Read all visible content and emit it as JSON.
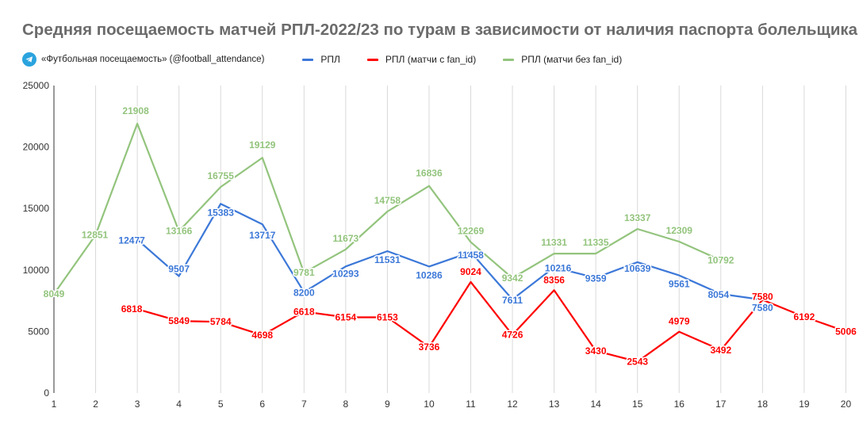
{
  "title": "Средняя посещаемость матчей РПЛ-2022/23 по турам в зависимости от наличия паспорта болельщика",
  "source_label": "«Футбольная посещаемость» (@football_attendance)",
  "icons": {
    "source": "telegram-icon"
  },
  "chart_data": {
    "type": "line",
    "title": "Средняя посещаемость матчей РПЛ-2022/23 по турам в зависимости от наличия паспорта болельщика",
    "xlabel": "",
    "ylabel": "",
    "x": [
      1,
      2,
      3,
      4,
      5,
      6,
      7,
      8,
      9,
      10,
      11,
      12,
      13,
      14,
      15,
      16,
      17,
      18,
      19,
      20
    ],
    "y_ticks": [
      0,
      5000,
      10000,
      15000,
      20000,
      25000
    ],
    "ylim": [
      0,
      25000
    ],
    "grid": "vertical",
    "legend_position": "top",
    "series": [
      {
        "name": "РПЛ",
        "color": "#3c78d8",
        "x": [
          3,
          4,
          5,
          6,
          7,
          8,
          9,
          10,
          11,
          12,
          13,
          14,
          15,
          16,
          17,
          18
        ],
        "values": [
          12477,
          9507,
          15383,
          13717,
          8200,
          10293,
          11531,
          10286,
          11458,
          7611,
          10216,
          9359,
          10639,
          9561,
          8054,
          7580
        ]
      },
      {
        "name": "РПЛ (матчи с fan_id)",
        "color": "#ff0000",
        "x": [
          3,
          4,
          5,
          6,
          7,
          8,
          9,
          10,
          11,
          12,
          13,
          14,
          15,
          16,
          17,
          18,
          19,
          20
        ],
        "values": [
          6818,
          5849,
          5784,
          4698,
          6618,
          6154,
          6153,
          3736,
          9024,
          4726,
          8356,
          3430,
          2543,
          4979,
          3492,
          7580,
          6192,
          5006
        ]
      },
      {
        "name": "РПЛ (матчи без fan_id)",
        "color": "#93c47d",
        "x": [
          1,
          2,
          3,
          4,
          5,
          6,
          7,
          8,
          9,
          10,
          11,
          12,
          13,
          14,
          15,
          16,
          17
        ],
        "values": [
          8049,
          12851,
          21908,
          13166,
          16755,
          19129,
          9781,
          11673,
          14758,
          16836,
          12269,
          9342,
          11331,
          11335,
          13337,
          12309,
          10792
        ]
      }
    ]
  }
}
